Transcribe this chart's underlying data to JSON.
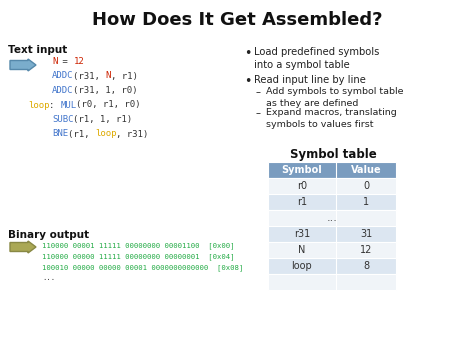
{
  "title": "How Does It Get Assembled?",
  "title_fontsize": 13,
  "background_color": "#ffffff",
  "text_input_label": "Text input",
  "code_lines": [
    {
      "parts": [
        {
          "text": "N",
          "color": "#cc2200"
        },
        {
          "text": " = ",
          "color": "#333333"
        },
        {
          "text": "12",
          "color": "#cc2200"
        }
      ]
    },
    {
      "parts": [
        {
          "text": "ADDC",
          "color": "#4477cc"
        },
        {
          "text": "(r31, ",
          "color": "#333333"
        },
        {
          "text": "N",
          "color": "#cc2200"
        },
        {
          "text": ", r1)",
          "color": "#333333"
        }
      ]
    },
    {
      "parts": [
        {
          "text": "ADDC",
          "color": "#4477cc"
        },
        {
          "text": "(r31, 1, r0)",
          "color": "#333333"
        }
      ]
    },
    {
      "parts": [
        {
          "text": "loop",
          "color": "#ddaa00"
        },
        {
          "text": ": ",
          "color": "#333333"
        },
        {
          "text": "MUL",
          "color": "#4477cc"
        },
        {
          "text": "(r0, r1, r0)",
          "color": "#333333"
        }
      ],
      "loop_line": true
    },
    {
      "parts": [
        {
          "text": "SUBC",
          "color": "#4477cc"
        },
        {
          "text": "(r1, 1, r1)",
          "color": "#333333"
        }
      ]
    },
    {
      "parts": [
        {
          "text": "BNE",
          "color": "#4477cc"
        },
        {
          "text": "(r1, ",
          "color": "#333333"
        },
        {
          "text": "loop",
          "color": "#ddaa00"
        },
        {
          "text": ", r31)",
          "color": "#333333"
        }
      ]
    }
  ],
  "binary_output_label": "Binary output",
  "binary_lines": [
    "110000 00001 11111 00000000 00001100  [0x00]",
    "110000 00000 11111 00000000 00000001  [0x04]",
    "100010 00000 00000 00001 0000000000000  [0x08]",
    "..."
  ],
  "bullet_points": [
    "Load predefined symbols\ninto a symbol table",
    "Read input line by line"
  ],
  "sub_bullets": [
    "Add symbols to symbol table\nas they are defined",
    "Expand macros, translating\nsymbols to values first"
  ],
  "symbol_table_title": "Symbol table",
  "table_header": [
    "Symbol",
    "Value"
  ],
  "table_rows": [
    [
      "r0",
      "0"
    ],
    [
      "r1",
      "1"
    ],
    [
      "...",
      ""
    ],
    [
      "r31",
      "31"
    ],
    [
      "N",
      "12"
    ],
    [
      "loop",
      "8"
    ],
    [
      "",
      ""
    ]
  ],
  "table_header_bg": "#7a9cbf",
  "table_row_bg_alt": "#dce6f1",
  "table_row_bg": "#f0f4f8"
}
